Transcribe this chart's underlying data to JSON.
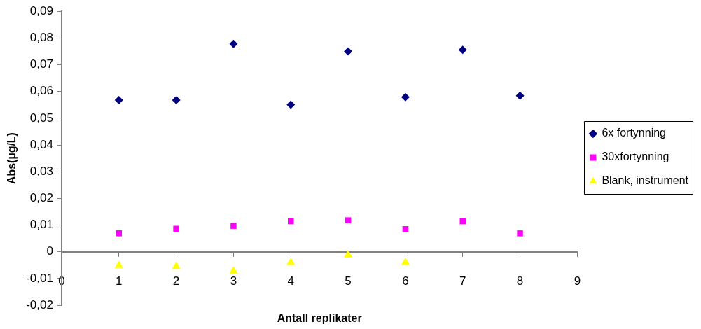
{
  "chart_data": {
    "type": "scatter",
    "xlabel": "Antall replikater",
    "ylabel": "Abs(µg/L)",
    "xlim": [
      0,
      9
    ],
    "xticks": [
      0,
      1,
      2,
      3,
      4,
      5,
      6,
      7,
      8,
      9
    ],
    "ylim": [
      -0.02,
      0.09
    ],
    "yticks": [
      {
        "value": -0.02,
        "label": "-0,02"
      },
      {
        "value": -0.01,
        "label": "-0,01"
      },
      {
        "value": 0,
        "label": "0"
      },
      {
        "value": 0.01,
        "label": "0,01"
      },
      {
        "value": 0.02,
        "label": "0,02"
      },
      {
        "value": 0.03,
        "label": "0,03"
      },
      {
        "value": 0.04,
        "label": "0,04"
      },
      {
        "value": 0.05,
        "label": "0,05"
      },
      {
        "value": 0.06,
        "label": "0,06"
      },
      {
        "value": 0.07,
        "label": "0,07"
      },
      {
        "value": 0.08,
        "label": "0,08"
      },
      {
        "value": 0.09,
        "label": "0,09"
      }
    ],
    "grid": false,
    "legend": "right",
    "series": [
      {
        "name": "6x fortynning",
        "color": "#000080",
        "marker": "diamond",
        "x": [
          1,
          2,
          3,
          4,
          5,
          6,
          7,
          8
        ],
        "values": [
          0.0568,
          0.0568,
          0.0778,
          0.0551,
          0.075,
          0.0579,
          0.0756,
          0.0584
        ]
      },
      {
        "name": "30xfortynning",
        "color": "#ff00ff",
        "marker": "square",
        "x": [
          1,
          2,
          3,
          4,
          5,
          6,
          7,
          8
        ],
        "values": [
          0.0069,
          0.0086,
          0.0097,
          0.0114,
          0.0118,
          0.0085,
          0.0114,
          0.0069
        ]
      },
      {
        "name": "Blank, instrument",
        "color": "#ffff00",
        "marker": "triangle",
        "x": [
          1,
          2,
          3,
          4,
          5,
          6
        ],
        "values": [
          -0.0051,
          -0.0055,
          -0.0072,
          -0.004,
          -0.0012,
          -0.004
        ]
      }
    ]
  }
}
